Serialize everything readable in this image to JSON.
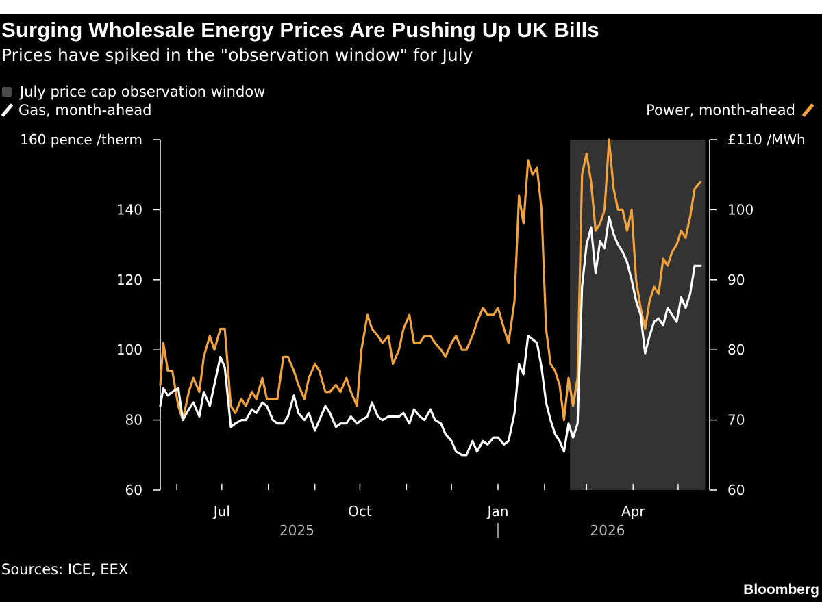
{
  "title": "Surging Wholesale Energy Prices Are Pushing Up UK Bills",
  "subtitle": "Prices have spiked in the \"observation window\" for July",
  "source": "Sources: ICE, EEX",
  "brand": "Bloomberg",
  "legend": {
    "window": "July price cap observation window",
    "gas": "Gas, month-ahead",
    "power": "Power, month-ahead"
  },
  "colors": {
    "background": "#000000",
    "gas": "#ffffff",
    "power": "#f2a23a",
    "window": "#333333",
    "text": "#ffffff"
  },
  "chart_data": {
    "type": "line",
    "x_axis": {
      "range": [
        "2025-05-21",
        "2026-05-22"
      ],
      "month_ticks": [
        "2025-06-01",
        "2025-07-01",
        "2025-08-01",
        "2025-09-01",
        "2025-10-01",
        "2025-11-01",
        "2025-12-01",
        "2026-01-01",
        "2026-02-01",
        "2026-03-01",
        "2026-04-01",
        "2026-05-01"
      ],
      "labels": [
        {
          "date": "2025-07-01",
          "text": "Jul"
        },
        {
          "date": "2025-10-01",
          "text": "Oct"
        },
        {
          "date": "2026-01-01",
          "text": "Jan"
        },
        {
          "date": "2026-04-01",
          "text": "Apr"
        }
      ],
      "years": [
        {
          "date": "2025-08-20",
          "text": "2025"
        },
        {
          "date": "2026-03-15",
          "text": "2026"
        }
      ],
      "year_divider": "2026-01-01"
    },
    "y_left": {
      "unit": "pence /therm",
      "range": [
        60,
        160
      ],
      "ticks": [
        60,
        80,
        100,
        120,
        140,
        160
      ],
      "tick_labels": [
        "60",
        "80",
        "100",
        "120",
        "140",
        "160 pence /therm"
      ]
    },
    "y_right": {
      "unit": "£ /MWh",
      "range": [
        60,
        110
      ],
      "ticks": [
        60,
        70,
        80,
        90,
        100,
        110
      ],
      "tick_labels": [
        "60",
        "70",
        "80",
        "90",
        "100",
        "£110 /MWh"
      ]
    },
    "shaded_window": {
      "start": "2026-02-18",
      "end": "2026-05-19"
    },
    "series": [
      {
        "name": "Gas, month-ahead",
        "axis": "left",
        "points": [
          [
            "2025-05-21",
            84
          ],
          [
            "2025-05-23",
            89
          ],
          [
            "2025-05-26",
            87
          ],
          [
            "2025-05-29",
            88
          ],
          [
            "2025-06-02",
            89
          ],
          [
            "2025-06-05",
            80
          ],
          [
            "2025-06-09",
            83
          ],
          [
            "2025-06-12",
            85
          ],
          [
            "2025-06-16",
            81
          ],
          [
            "2025-06-19",
            88
          ],
          [
            "2025-06-23",
            84
          ],
          [
            "2025-06-26",
            90
          ],
          [
            "2025-06-30",
            98
          ],
          [
            "2025-07-03",
            95
          ],
          [
            "2025-07-07",
            78
          ],
          [
            "2025-07-10",
            79
          ],
          [
            "2025-07-14",
            80
          ],
          [
            "2025-07-17",
            80
          ],
          [
            "2025-07-21",
            83
          ],
          [
            "2025-07-24",
            82
          ],
          [
            "2025-07-28",
            85
          ],
          [
            "2025-07-31",
            84
          ],
          [
            "2025-08-04",
            80
          ],
          [
            "2025-08-07",
            79
          ],
          [
            "2025-08-11",
            79
          ],
          [
            "2025-08-14",
            81
          ],
          [
            "2025-08-18",
            87
          ],
          [
            "2025-08-21",
            82
          ],
          [
            "2025-08-25",
            80
          ],
          [
            "2025-08-28",
            82
          ],
          [
            "2025-09-01",
            77
          ],
          [
            "2025-09-04",
            80
          ],
          [
            "2025-09-08",
            84
          ],
          [
            "2025-09-11",
            82
          ],
          [
            "2025-09-15",
            78
          ],
          [
            "2025-09-18",
            79
          ],
          [
            "2025-09-22",
            79
          ],
          [
            "2025-09-25",
            81
          ],
          [
            "2025-09-29",
            79
          ],
          [
            "2025-10-02",
            80
          ],
          [
            "2025-10-06",
            81
          ],
          [
            "2025-10-09",
            85
          ],
          [
            "2025-10-13",
            81
          ],
          [
            "2025-10-16",
            80
          ],
          [
            "2025-10-20",
            81
          ],
          [
            "2025-10-23",
            81
          ],
          [
            "2025-10-27",
            81
          ],
          [
            "2025-10-30",
            82
          ],
          [
            "2025-11-03",
            79
          ],
          [
            "2025-11-06",
            83
          ],
          [
            "2025-11-10",
            81
          ],
          [
            "2025-11-13",
            80
          ],
          [
            "2025-11-17",
            83
          ],
          [
            "2025-11-20",
            80
          ],
          [
            "2025-11-24",
            79
          ],
          [
            "2025-11-27",
            76
          ],
          [
            "2025-12-01",
            74
          ],
          [
            "2025-12-04",
            71
          ],
          [
            "2025-12-08",
            70
          ],
          [
            "2025-12-11",
            70
          ],
          [
            "2025-12-15",
            74
          ],
          [
            "2025-12-18",
            71
          ],
          [
            "2025-12-22",
            74
          ],
          [
            "2025-12-25",
            73
          ],
          [
            "2025-12-29",
            75
          ],
          [
            "2026-01-01",
            75
          ],
          [
            "2026-01-05",
            73
          ],
          [
            "2026-01-08",
            74
          ],
          [
            "2026-01-12",
            82
          ],
          [
            "2026-01-15",
            96
          ],
          [
            "2026-01-18",
            93
          ],
          [
            "2026-01-21",
            104
          ],
          [
            "2026-01-24",
            103
          ],
          [
            "2026-01-27",
            102
          ],
          [
            "2026-01-30",
            95
          ],
          [
            "2026-02-02",
            85
          ],
          [
            "2026-02-05",
            80
          ],
          [
            "2026-02-08",
            76
          ],
          [
            "2026-02-11",
            74
          ],
          [
            "2026-02-14",
            71
          ],
          [
            "2026-02-17",
            79
          ],
          [
            "2026-02-20",
            75
          ],
          [
            "2026-02-23",
            79
          ],
          [
            "2026-02-26",
            118
          ],
          [
            "2026-03-01",
            130
          ],
          [
            "2026-03-04",
            135
          ],
          [
            "2026-03-07",
            122
          ],
          [
            "2026-03-10",
            131
          ],
          [
            "2026-03-13",
            129
          ],
          [
            "2026-03-16",
            138
          ],
          [
            "2026-03-19",
            133
          ],
          [
            "2026-03-22",
            130
          ],
          [
            "2026-03-25",
            128
          ],
          [
            "2026-03-28",
            125
          ],
          [
            "2026-03-31",
            120
          ],
          [
            "2026-04-03",
            114
          ],
          [
            "2026-04-06",
            110
          ],
          [
            "2026-04-09",
            99
          ],
          [
            "2026-04-12",
            104
          ],
          [
            "2026-04-15",
            108
          ],
          [
            "2026-04-18",
            109
          ],
          [
            "2026-04-21",
            107
          ],
          [
            "2026-04-24",
            112
          ],
          [
            "2026-04-27",
            110
          ],
          [
            "2026-04-30",
            108
          ],
          [
            "2026-05-03",
            115
          ],
          [
            "2026-05-06",
            112
          ],
          [
            "2026-05-09",
            116
          ],
          [
            "2026-05-12",
            124
          ],
          [
            "2026-05-16",
            124
          ]
        ]
      },
      {
        "name": "Power, month-ahead",
        "axis": "right",
        "points": [
          [
            "2025-05-21",
            75
          ],
          [
            "2025-05-23",
            81
          ],
          [
            "2025-05-26",
            77
          ],
          [
            "2025-05-29",
            77
          ],
          [
            "2025-06-02",
            72
          ],
          [
            "2025-06-05",
            70
          ],
          [
            "2025-06-09",
            74
          ],
          [
            "2025-06-12",
            76
          ],
          [
            "2025-06-16",
            74
          ],
          [
            "2025-06-19",
            79
          ],
          [
            "2025-06-23",
            82
          ],
          [
            "2025-06-26",
            80
          ],
          [
            "2025-06-30",
            83
          ],
          [
            "2025-07-03",
            83
          ],
          [
            "2025-07-07",
            72
          ],
          [
            "2025-07-10",
            71
          ],
          [
            "2025-07-14",
            73
          ],
          [
            "2025-07-17",
            72
          ],
          [
            "2025-07-21",
            74
          ],
          [
            "2025-07-24",
            73
          ],
          [
            "2025-07-28",
            76
          ],
          [
            "2025-07-31",
            73
          ],
          [
            "2025-08-04",
            73
          ],
          [
            "2025-08-07",
            73
          ],
          [
            "2025-08-11",
            79
          ],
          [
            "2025-08-14",
            79
          ],
          [
            "2025-08-18",
            77
          ],
          [
            "2025-08-21",
            75
          ],
          [
            "2025-08-25",
            73
          ],
          [
            "2025-08-28",
            76
          ],
          [
            "2025-09-01",
            78
          ],
          [
            "2025-09-04",
            77
          ],
          [
            "2025-09-08",
            74
          ],
          [
            "2025-09-11",
            74
          ],
          [
            "2025-09-15",
            75
          ],
          [
            "2025-09-18",
            74
          ],
          [
            "2025-09-22",
            76
          ],
          [
            "2025-09-25",
            74
          ],
          [
            "2025-09-29",
            72
          ],
          [
            "2025-10-02",
            80
          ],
          [
            "2025-10-06",
            85
          ],
          [
            "2025-10-09",
            83
          ],
          [
            "2025-10-13",
            82
          ],
          [
            "2025-10-16",
            81
          ],
          [
            "2025-10-20",
            82
          ],
          [
            "2025-10-23",
            78
          ],
          [
            "2025-10-27",
            80
          ],
          [
            "2025-10-30",
            83
          ],
          [
            "2025-11-03",
            85
          ],
          [
            "2025-11-06",
            81
          ],
          [
            "2025-11-10",
            81
          ],
          [
            "2025-11-13",
            82
          ],
          [
            "2025-11-17",
            82
          ],
          [
            "2025-11-20",
            81
          ],
          [
            "2025-11-24",
            80
          ],
          [
            "2025-11-27",
            79
          ],
          [
            "2025-12-01",
            81
          ],
          [
            "2025-12-04",
            82
          ],
          [
            "2025-12-08",
            80
          ],
          [
            "2025-12-11",
            80
          ],
          [
            "2025-12-15",
            82
          ],
          [
            "2025-12-18",
            84
          ],
          [
            "2025-12-22",
            86
          ],
          [
            "2025-12-25",
            85
          ],
          [
            "2025-12-29",
            85
          ],
          [
            "2026-01-01",
            86
          ],
          [
            "2026-01-05",
            83
          ],
          [
            "2026-01-08",
            81
          ],
          [
            "2026-01-12",
            87
          ],
          [
            "2026-01-15",
            102
          ],
          [
            "2026-01-18",
            98
          ],
          [
            "2026-01-21",
            107
          ],
          [
            "2026-01-24",
            105
          ],
          [
            "2026-01-27",
            106
          ],
          [
            "2026-01-30",
            100
          ],
          [
            "2026-02-02",
            83
          ],
          [
            "2026-02-05",
            78
          ],
          [
            "2026-02-08",
            77
          ],
          [
            "2026-02-11",
            75
          ],
          [
            "2026-02-14",
            70
          ],
          [
            "2026-02-17",
            76
          ],
          [
            "2026-02-20",
            72
          ],
          [
            "2026-02-23",
            76
          ],
          [
            "2026-02-26",
            105
          ],
          [
            "2026-03-01",
            108
          ],
          [
            "2026-03-04",
            104
          ],
          [
            "2026-03-07",
            97
          ],
          [
            "2026-03-10",
            98
          ],
          [
            "2026-03-13",
            100
          ],
          [
            "2026-03-16",
            110
          ],
          [
            "2026-03-19",
            103
          ],
          [
            "2026-03-22",
            100
          ],
          [
            "2026-03-25",
            100
          ],
          [
            "2026-03-28",
            97
          ],
          [
            "2026-03-31",
            100
          ],
          [
            "2026-04-03",
            90
          ],
          [
            "2026-04-06",
            86
          ],
          [
            "2026-04-09",
            83
          ],
          [
            "2026-04-12",
            87
          ],
          [
            "2026-04-15",
            89
          ],
          [
            "2026-04-18",
            88
          ],
          [
            "2026-04-21",
            93
          ],
          [
            "2026-04-24",
            92
          ],
          [
            "2026-04-27",
            94
          ],
          [
            "2026-04-30",
            95
          ],
          [
            "2026-05-03",
            97
          ],
          [
            "2026-05-06",
            96
          ],
          [
            "2026-05-09",
            99
          ],
          [
            "2026-05-12",
            103
          ],
          [
            "2026-05-16",
            104
          ]
        ]
      }
    ]
  }
}
